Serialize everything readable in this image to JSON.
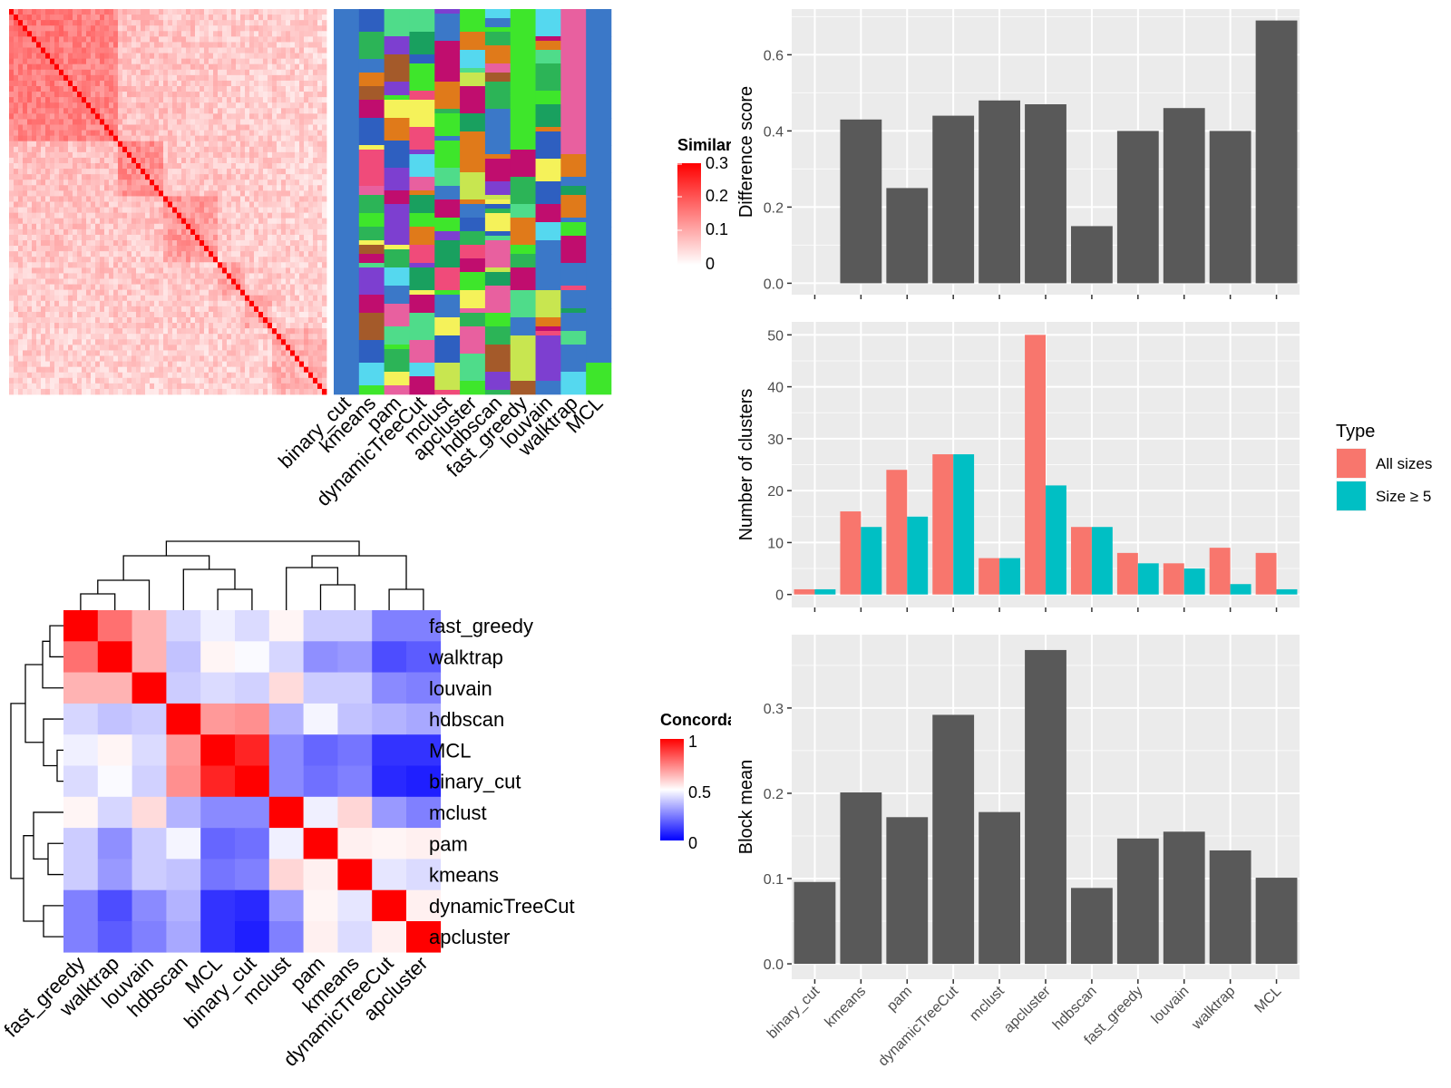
{
  "methods": [
    "binary_cut",
    "kmeans",
    "pam",
    "dynamicTreeCut",
    "mclust",
    "apcluster",
    "hdbscan",
    "fast_greedy",
    "louvain",
    "walktrap",
    "MCL"
  ],
  "similarity_legend": {
    "title": "Similarity",
    "ticks": [
      "0.3",
      "0.2",
      "0.1",
      "0"
    ],
    "colors": {
      "high": "#ff0000",
      "low": "#ffffff"
    }
  },
  "concordance_legend": {
    "title": "Concordance",
    "ticks": [
      "1",
      "0.5",
      "0"
    ],
    "colors": {
      "high": "#ff0000",
      "mid": "#ffffff",
      "low": "#0000ff"
    }
  },
  "type_legend": {
    "title": "Type",
    "items": [
      {
        "label": "All sizes",
        "color": "#f8766d"
      },
      {
        "label": "Size ≥ 5",
        "color": "#00bfc4"
      }
    ]
  },
  "concordance_order": [
    "fast_greedy",
    "walktrap",
    "louvain",
    "hdbscan",
    "MCL",
    "binary_cut",
    "mclust",
    "pam",
    "kmeans",
    "dynamicTreeCut",
    "apcluster"
  ],
  "chart_data": [
    {
      "type": "heatmap",
      "name": "concordance",
      "rows": [
        "fast_greedy",
        "walktrap",
        "louvain",
        "hdbscan",
        "MCL",
        "binary_cut",
        "mclust",
        "pam",
        "kmeans",
        "dynamicTreeCut",
        "apcluster"
      ],
      "cols": [
        "fast_greedy",
        "walktrap",
        "louvain",
        "hdbscan",
        "MCL",
        "binary_cut",
        "mclust",
        "pam",
        "kmeans",
        "dynamicTreeCut",
        "apcluster"
      ],
      "values": [
        [
          1.0,
          0.78,
          0.65,
          0.42,
          0.47,
          0.43,
          0.52,
          0.4,
          0.4,
          0.25,
          0.25
        ],
        [
          0.78,
          1.0,
          0.65,
          0.38,
          0.52,
          0.49,
          0.42,
          0.28,
          0.3,
          0.15,
          0.18
        ],
        [
          0.65,
          0.65,
          1.0,
          0.4,
          0.43,
          0.41,
          0.57,
          0.4,
          0.4,
          0.27,
          0.25
        ],
        [
          0.42,
          0.38,
          0.4,
          1.0,
          0.7,
          0.72,
          0.35,
          0.48,
          0.38,
          0.35,
          0.33
        ],
        [
          0.47,
          0.52,
          0.43,
          0.7,
          1.0,
          0.93,
          0.27,
          0.2,
          0.23,
          0.1,
          0.1
        ],
        [
          0.43,
          0.49,
          0.41,
          0.72,
          0.93,
          1.0,
          0.27,
          0.22,
          0.25,
          0.08,
          0.06
        ],
        [
          0.52,
          0.42,
          0.57,
          0.35,
          0.27,
          0.27,
          1.0,
          0.47,
          0.58,
          0.3,
          0.25
        ],
        [
          0.4,
          0.28,
          0.4,
          0.48,
          0.2,
          0.22,
          0.47,
          1.0,
          0.53,
          0.52,
          0.53
        ],
        [
          0.4,
          0.3,
          0.4,
          0.38,
          0.23,
          0.25,
          0.58,
          0.53,
          1.0,
          0.45,
          0.43
        ],
        [
          0.25,
          0.15,
          0.27,
          0.35,
          0.1,
          0.08,
          0.3,
          0.52,
          0.45,
          1.0,
          0.53
        ],
        [
          0.25,
          0.18,
          0.25,
          0.33,
          0.1,
          0.06,
          0.25,
          0.53,
          0.43,
          0.53,
          1.0
        ]
      ],
      "colorscale": {
        "min": 0,
        "mid": 0.5,
        "max": 1
      }
    },
    {
      "type": "bar",
      "name": "difference",
      "categories": [
        "binary_cut",
        "kmeans",
        "pam",
        "dynamicTreeCut",
        "mclust",
        "apcluster",
        "hdbscan",
        "fast_greedy",
        "louvain",
        "walktrap",
        "MCL"
      ],
      "values": [
        0.0,
        0.43,
        0.25,
        0.44,
        0.48,
        0.47,
        0.15,
        0.4,
        0.46,
        0.4,
        0.69
      ],
      "ylabel": "Difference score",
      "ylim": [
        -0.03,
        0.72
      ],
      "yticks": [
        "0.0",
        "0.2",
        "0.4",
        "0.6"
      ],
      "ytick_values": [
        0.0,
        0.2,
        0.4,
        0.6
      ],
      "color": "#595959"
    },
    {
      "type": "bar",
      "name": "nclusters",
      "categories": [
        "binary_cut",
        "kmeans",
        "pam",
        "dynamicTreeCut",
        "mclust",
        "apcluster",
        "hdbscan",
        "fast_greedy",
        "louvain",
        "walktrap",
        "MCL"
      ],
      "series": [
        {
          "name": "All sizes",
          "values": [
            1,
            16,
            24,
            27,
            7,
            50,
            13,
            8,
            6,
            9,
            8
          ],
          "color": "#f8766d"
        },
        {
          "name": "Size ≥ 5",
          "values": [
            1,
            13,
            15,
            27,
            7,
            21,
            13,
            6,
            5,
            2,
            1
          ],
          "color": "#00bfc4"
        }
      ],
      "ylabel": "Number of clusters",
      "ylim": [
        -2.5,
        52.5
      ],
      "yticks": [
        "0",
        "10",
        "20",
        "30",
        "40",
        "50"
      ],
      "ytick_values": [
        0,
        10,
        20,
        30,
        40,
        50
      ]
    },
    {
      "type": "bar",
      "name": "blockmean",
      "categories": [
        "binary_cut",
        "kmeans",
        "pam",
        "dynamicTreeCut",
        "mclust",
        "apcluster",
        "hdbscan",
        "fast_greedy",
        "louvain",
        "walktrap",
        "MCL"
      ],
      "values": [
        0.096,
        0.201,
        0.172,
        0.292,
        0.178,
        0.368,
        0.089,
        0.147,
        0.155,
        0.133,
        0.101
      ],
      "ylabel": "Block mean",
      "ylim": [
        -0.018,
        0.386
      ],
      "yticks": [
        "0.0",
        "0.1",
        "0.2",
        "0.3"
      ],
      "ytick_values": [
        0.0,
        0.1,
        0.2,
        0.3
      ],
      "color": "#595959"
    }
  ]
}
